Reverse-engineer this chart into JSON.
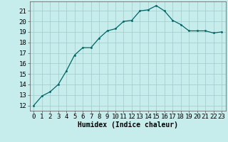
{
  "x": [
    0,
    1,
    2,
    3,
    4,
    5,
    6,
    7,
    8,
    9,
    10,
    11,
    12,
    13,
    14,
    15,
    16,
    17,
    18,
    19,
    20,
    21,
    22,
    23
  ],
  "y": [
    12,
    12.9,
    13.3,
    14.0,
    15.3,
    16.8,
    17.5,
    17.5,
    18.4,
    19.1,
    19.3,
    20.0,
    20.1,
    21.0,
    21.1,
    21.5,
    21.0,
    20.1,
    19.7,
    19.1,
    19.1,
    19.1,
    18.9,
    19.0
  ],
  "xlabel": "Humidex (Indice chaleur)",
  "ylabel_ticks": [
    12,
    13,
    14,
    15,
    16,
    17,
    18,
    19,
    20,
    21
  ],
  "ylim": [
    11.5,
    21.9
  ],
  "xlim": [
    -0.5,
    23.5
  ],
  "bg_color": "#c6ecec",
  "grid_color": "#a0cccc",
  "line_color": "#006666",
  "marker_color": "#006666",
  "xlabel_fontsize": 7,
  "tick_fontsize": 6.5
}
